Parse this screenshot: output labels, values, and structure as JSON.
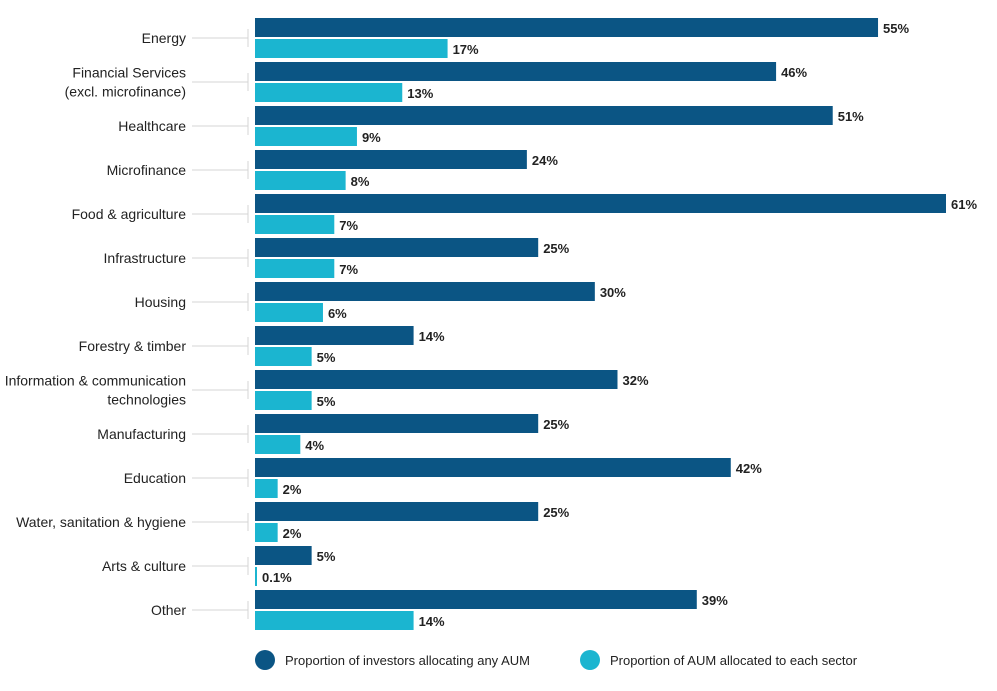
{
  "chart_data": {
    "type": "bar",
    "orientation": "horizontal",
    "categories": [
      [
        "Energy"
      ],
      [
        "Financial Services",
        "(excl. microfinance)"
      ],
      [
        "Healthcare"
      ],
      [
        "Microfinance"
      ],
      [
        "Food & agriculture"
      ],
      [
        "Infrastructure"
      ],
      [
        "Housing"
      ],
      [
        "Forestry & timber"
      ],
      [
        "Information & communication",
        "technologies"
      ],
      [
        "Manufacturing"
      ],
      [
        "Education"
      ],
      [
        "Water, sanitation & hygiene"
      ],
      [
        "Arts & culture"
      ],
      [
        "Other"
      ]
    ],
    "series": [
      {
        "name": "Proportion of investors allocating any AUM",
        "color": "#0b5584",
        "values": [
          55,
          46,
          51,
          24,
          61,
          25,
          30,
          14,
          32,
          25,
          42,
          25,
          5,
          39
        ],
        "labels": [
          "55%",
          "46%",
          "51%",
          "24%",
          "61%",
          "25%",
          "30%",
          "14%",
          "32%",
          "25%",
          "42%",
          "25%",
          "5%",
          "39%"
        ]
      },
      {
        "name": "Proportion of AUM allocated to each sector",
        "color": "#1bb5d0",
        "values": [
          17,
          13,
          9,
          8,
          7,
          7,
          6,
          5,
          5,
          4,
          2,
          2,
          0.1,
          14
        ],
        "labels": [
          "17%",
          "13%",
          "9%",
          "8%",
          "7%",
          "7%",
          "6%",
          "5%",
          "5%",
          "4%",
          "2%",
          "2%",
          "0.1%",
          "14%"
        ]
      }
    ],
    "xlim": [
      0,
      61
    ],
    "grid": false,
    "legend_position": "bottom-left"
  }
}
